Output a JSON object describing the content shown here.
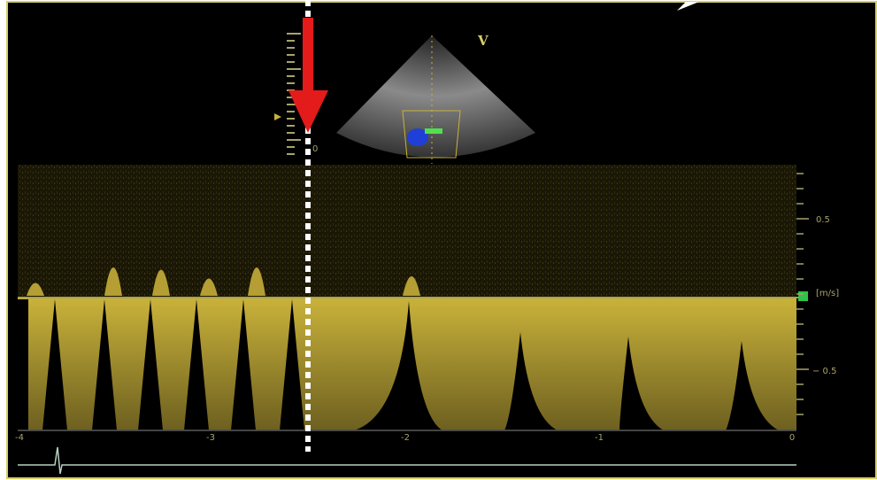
{
  "image": {
    "mode_label": "V",
    "depth_zero": "0",
    "velocity_labels": [
      "0.5",
      "[m/s]",
      "− 0.5"
    ],
    "time_labels": [
      "-4",
      "-3",
      "-2",
      "-1",
      "0"
    ]
  }
}
